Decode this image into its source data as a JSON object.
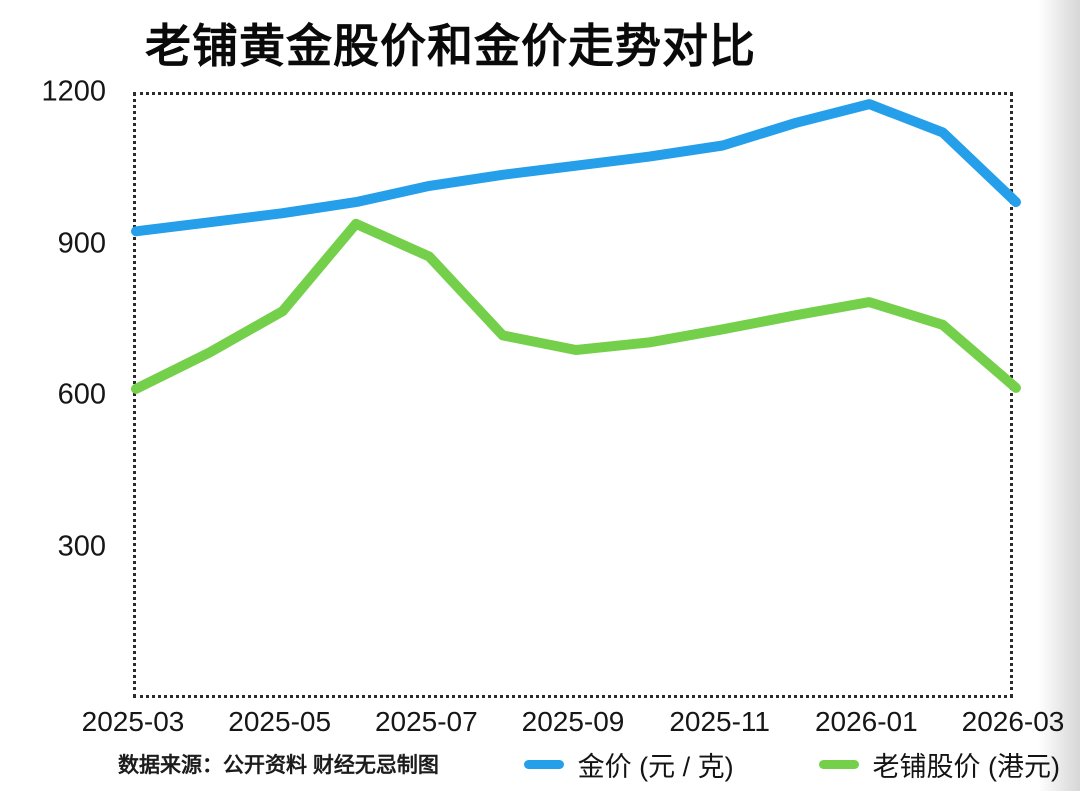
{
  "title": "老铺黄金股价和金价走势对比",
  "footer": {
    "source": "数据来源：公开资料  财经无忌制图"
  },
  "legend": [
    {
      "id": "gold-price",
      "label": "金价 (元 / 克)",
      "color": "#259FE9"
    },
    {
      "id": "laopu-stock",
      "label": "老铺股价 (港元)",
      "color": "#74D04A"
    }
  ],
  "colors": {
    "gold_line": "#259FE9",
    "stock_line": "#74D04A",
    "plot_border": "#2b2b2b",
    "background": "#ffffff"
  },
  "chart_data": {
    "type": "line",
    "title": "老铺黄金股价和金价走势对比",
    "x": [
      "2025-03",
      "2025-04",
      "2025-05",
      "2025-06",
      "2025-07",
      "2025-08",
      "2025-09",
      "2025-10",
      "2025-11",
      "2025-12",
      "2026-01",
      "2026-02",
      "2026-03"
    ],
    "series": [
      {
        "id": "gold-price-line",
        "name": "金价 (元 / 克)",
        "color": "#259FE9",
        "values": [
          930,
          948,
          966,
          988,
          1020,
          1042,
          1060,
          1078,
          1100,
          1145,
          1182,
          1126,
          988
        ]
      },
      {
        "id": "laopu-stock-line",
        "name": "老铺股价 (港元)",
        "color": "#74D04A",
        "values": [
          618,
          690,
          772,
          945,
          880,
          724,
          695,
          710,
          736,
          764,
          790,
          745,
          620
        ]
      }
    ],
    "xticks": [
      "2025-03",
      "2025-05",
      "2025-07",
      "2025-09",
      "2025-11",
      "2026-01",
      "2026-03"
    ],
    "yticks": [
      1200,
      900,
      600,
      300
    ],
    "ylim": [
      0,
      1200
    ],
    "grid": false,
    "plot_border": "dotted",
    "legend_position": "bottom-right",
    "source_note": "数据来源：公开资料  财经无忌制图"
  }
}
